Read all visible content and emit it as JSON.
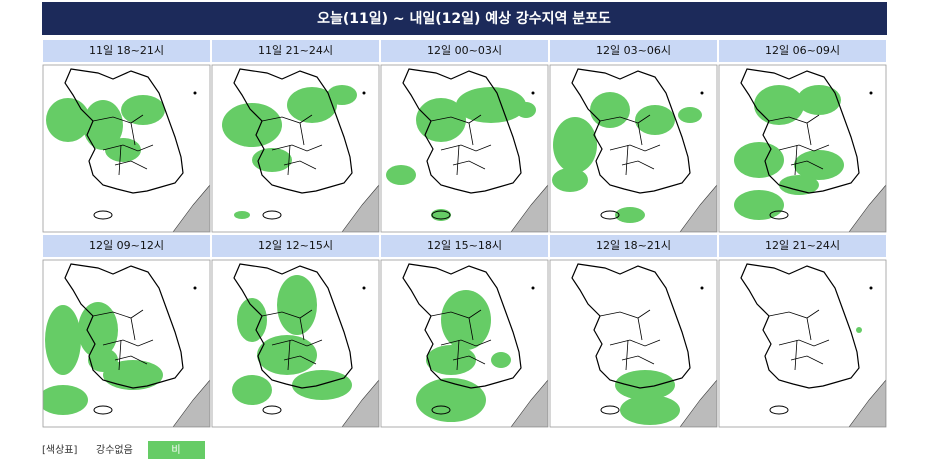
{
  "title": "오늘(11일) ~ 내일(12일) 예상 강수지역 분포도",
  "panels": [
    {
      "label": "11일 18~21시"
    },
    {
      "label": "11일 21~24시"
    },
    {
      "label": "12일 00~03시"
    },
    {
      "label": "12일 03~06시"
    },
    {
      "label": "12일 06~09시"
    },
    {
      "label": "12일 09~12시"
    },
    {
      "label": "12일 12~15시"
    },
    {
      "label": "12일 15~18시"
    },
    {
      "label": "12일 18~21시"
    },
    {
      "label": "12일 21~24시"
    }
  ],
  "legend": {
    "label": "[색상표]",
    "items": [
      "강수없음",
      "비"
    ]
  }
}
